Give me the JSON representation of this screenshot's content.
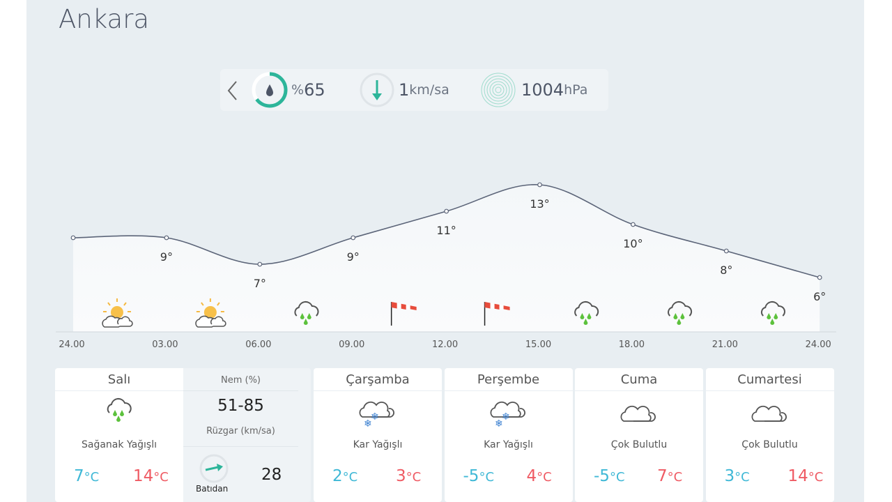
{
  "city": "Ankara",
  "stats": {
    "humidity_prefix": "%",
    "humidity": "65",
    "humidity_fraction": 0.65,
    "wind_value": "1",
    "wind_unit": "km/sa",
    "pressure_value": "1004",
    "pressure_unit": "hPa"
  },
  "colors": {
    "accent": "#2db59a",
    "cold": "#3fb8d6",
    "hot": "#ef5a63",
    "rain": "#5cc13c",
    "snow": "#3a7fd0"
  },
  "chart_data": {
    "type": "area",
    "x": [
      "24.00",
      "03.00",
      "06.00",
      "09.00",
      "12.00",
      "15.00",
      "18.00",
      "21.00",
      "24.00"
    ],
    "values": [
      9,
      9,
      7,
      9,
      11,
      13,
      10,
      8,
      6
    ],
    "labels": [
      "",
      "9°",
      "7°",
      "9°",
      "11°",
      "13°",
      "10°",
      "8°",
      "6°"
    ],
    "icons": [
      "partly-sunny",
      "partly-sunny",
      "rain",
      "wind",
      "wind",
      "rain",
      "rain",
      "rain"
    ]
  },
  "today": {
    "day": "Salı",
    "condition": "Sağanak Yağışlı",
    "low": "7",
    "high": "14",
    "unit": "°C",
    "humidity_label": "Nem (%)",
    "humidity_range": "51-85",
    "wind_label": "Rüzgar (km/sa)",
    "wind_dir": "Batıdan",
    "wind_speed": "28"
  },
  "days": [
    {
      "day": "Çarşamba",
      "condition": "Kar Yağışlı",
      "low": "2",
      "high": "3",
      "icon": "snow"
    },
    {
      "day": "Perşembe",
      "condition": "Kar Yağışlı",
      "low": "-5",
      "high": "4",
      "icon": "snow"
    },
    {
      "day": "Cuma",
      "condition": "Çok Bulutlu",
      "low": "-5",
      "high": "7",
      "icon": "cloudy"
    },
    {
      "day": "Cumartesi",
      "condition": "Çok Bulutlu",
      "low": "3",
      "high": "14",
      "icon": "cloudy"
    }
  ]
}
